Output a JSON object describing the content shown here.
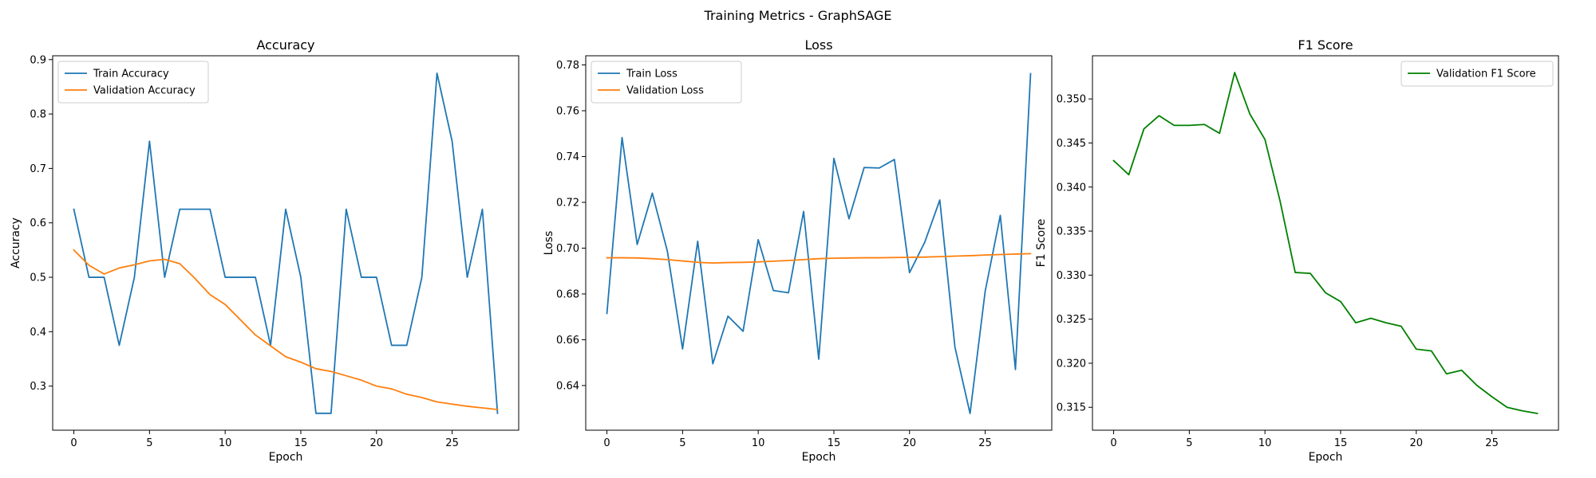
{
  "figure": {
    "suptitle": "Training Metrics - GraphSAGE"
  },
  "chart_data": [
    {
      "type": "line",
      "title": "Accuracy",
      "xlabel": "Epoch",
      "ylabel": "Accuracy",
      "xlim": [
        -1.4,
        29.4
      ],
      "ylim": [
        0.219,
        0.907
      ],
      "xticks": [
        0,
        5,
        10,
        15,
        20,
        25
      ],
      "yticks": [
        0.3,
        0.4,
        0.5,
        0.6,
        0.7,
        0.8,
        0.9
      ],
      "ytick_decimals": 1,
      "legend": "upper left",
      "grid": false,
      "x": [
        0,
        1,
        2,
        3,
        4,
        5,
        6,
        7,
        8,
        9,
        10,
        11,
        12,
        13,
        14,
        15,
        16,
        17,
        18,
        19,
        20,
        21,
        22,
        23,
        24,
        25,
        26,
        27,
        28
      ],
      "series": [
        {
          "name": "Train Accuracy",
          "color": "#1f77b4",
          "values": [
            0.625,
            0.5,
            0.5,
            0.375,
            0.5,
            0.75,
            0.5,
            0.625,
            0.625,
            0.625,
            0.5,
            0.5,
            0.5,
            0.375,
            0.625,
            0.5,
            0.25,
            0.25,
            0.625,
            0.5,
            0.5,
            0.375,
            0.375,
            0.5,
            0.875,
            0.75,
            0.5,
            0.625,
            0.25
          ]
        },
        {
          "name": "Validation Accuracy",
          "color": "#ff7f0e",
          "values": [
            0.55,
            0.522,
            0.506,
            0.517,
            0.523,
            0.53,
            0.533,
            0.525,
            0.498,
            0.468,
            0.45,
            0.422,
            0.394,
            0.374,
            0.354,
            0.344,
            0.332,
            0.327,
            0.319,
            0.311,
            0.3,
            0.295,
            0.285,
            0.279,
            0.271,
            0.267,
            0.263,
            0.26,
            0.257
          ]
        }
      ]
    },
    {
      "type": "line",
      "title": "Loss",
      "xlabel": "Epoch",
      "ylabel": "Loss",
      "xlim": [
        -1.4,
        29.4
      ],
      "ylim": [
        0.6205,
        0.784
      ],
      "xticks": [
        0,
        5,
        10,
        15,
        20,
        25
      ],
      "yticks": [
        0.64,
        0.66,
        0.68,
        0.7,
        0.72,
        0.74,
        0.76,
        0.78
      ],
      "ytick_decimals": 2,
      "legend": "upper left",
      "grid": false,
      "x": [
        0,
        1,
        2,
        3,
        4,
        5,
        6,
        7,
        8,
        9,
        10,
        11,
        12,
        13,
        14,
        15,
        16,
        17,
        18,
        19,
        20,
        21,
        22,
        23,
        24,
        25,
        26,
        27,
        28
      ],
      "series": [
        {
          "name": "Train Loss",
          "color": "#1f77b4",
          "values": [
            0.6715,
            0.7483,
            0.7016,
            0.724,
            0.6985,
            0.656,
            0.703,
            0.6495,
            0.6703,
            0.6637,
            0.7037,
            0.6815,
            0.6805,
            0.716,
            0.6515,
            0.7392,
            0.7128,
            0.7352,
            0.735,
            0.7387,
            0.6893,
            0.7025,
            0.721,
            0.6568,
            0.6278,
            0.6812,
            0.7143,
            0.647,
            0.7762
          ]
        },
        {
          "name": "Validation Loss",
          "color": "#ff7f0e",
          "values": [
            0.6958,
            0.6958,
            0.6957,
            0.6954,
            0.695,
            0.6944,
            0.6938,
            0.6935,
            0.6937,
            0.6938,
            0.694,
            0.6943,
            0.6946,
            0.695,
            0.6954,
            0.6956,
            0.6957,
            0.6958,
            0.6958,
            0.6959,
            0.696,
            0.6961,
            0.6963,
            0.6965,
            0.6967,
            0.697,
            0.6972,
            0.6974,
            0.6976
          ]
        }
      ]
    },
    {
      "type": "line",
      "title": "F1 Score",
      "xlabel": "Epoch",
      "ylabel": "F1 Score",
      "xlim": [
        -1.4,
        29.4
      ],
      "ylim": [
        0.3124,
        0.3549
      ],
      "xticks": [
        0,
        5,
        10,
        15,
        20,
        25
      ],
      "yticks": [
        0.315,
        0.32,
        0.325,
        0.33,
        0.335,
        0.34,
        0.345,
        0.35
      ],
      "ytick_decimals": 3,
      "legend": "upper right",
      "grid": false,
      "x": [
        0,
        1,
        2,
        3,
        4,
        5,
        6,
        7,
        8,
        9,
        10,
        11,
        12,
        13,
        14,
        15,
        16,
        17,
        18,
        19,
        20,
        21,
        22,
        23,
        24,
        25,
        26,
        27,
        28
      ],
      "series": [
        {
          "name": "Validation F1 Score",
          "color": "#008000",
          "values": [
            0.343,
            0.3414,
            0.3466,
            0.3481,
            0.347,
            0.347,
            0.3471,
            0.3461,
            0.353,
            0.3483,
            0.3454,
            0.3384,
            0.3303,
            0.3302,
            0.328,
            0.327,
            0.3246,
            0.3251,
            0.3246,
            0.3242,
            0.3216,
            0.3214,
            0.3188,
            0.3192,
            0.3175,
            0.3162,
            0.315,
            0.3146,
            0.3143
          ]
        }
      ]
    }
  ]
}
